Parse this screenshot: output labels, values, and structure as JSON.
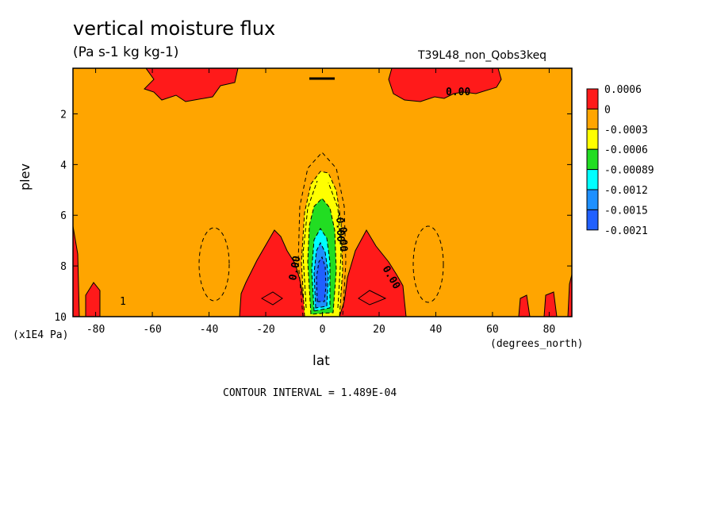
{
  "chart_data": {
    "type": "heatmap",
    "title": "vertical moisture flux",
    "units": "(Pa s-1 kg kg-1)",
    "run_id": "T39L48_non_Qobs3keq",
    "xlabel": "lat",
    "x_units": "(degrees_north)",
    "ylabel": "plev",
    "y_units": "(x1E4 Pa)",
    "contour_interval": "CONTOUR INTERVAL = 1.489E-04",
    "xlim": [
      -88,
      88
    ],
    "ylim": [
      10,
      0.2
    ],
    "x_ticks": [
      -80,
      -60,
      -40,
      -20,
      0,
      20,
      40,
      60,
      80
    ],
    "y_ticks": [
      2,
      4,
      6,
      8,
      10
    ],
    "contour_labels": [
      "0.00",
      "0.00",
      "0.00",
      "-0.00",
      "0.00",
      "1"
    ],
    "colorbar": [
      {
        "label": "0.0006",
        "color": "#ff1a1a"
      },
      {
        "label": "0",
        "color": "#ffa500"
      },
      {
        "label": "-0.0003",
        "color": "#ffff00"
      },
      {
        "label": "-0.0006",
        "color": "#22dd22"
      },
      {
        "label": "-0.00089",
        "color": "#00ffff"
      },
      {
        "label": "-0.0012",
        "color": "#1e90ff"
      },
      {
        "label": "-0.0015",
        "color": "#2060ff"
      },
      {
        "label": "-0.0021",
        "color": ""
      }
    ],
    "background_value_color": "#ffa500"
  }
}
